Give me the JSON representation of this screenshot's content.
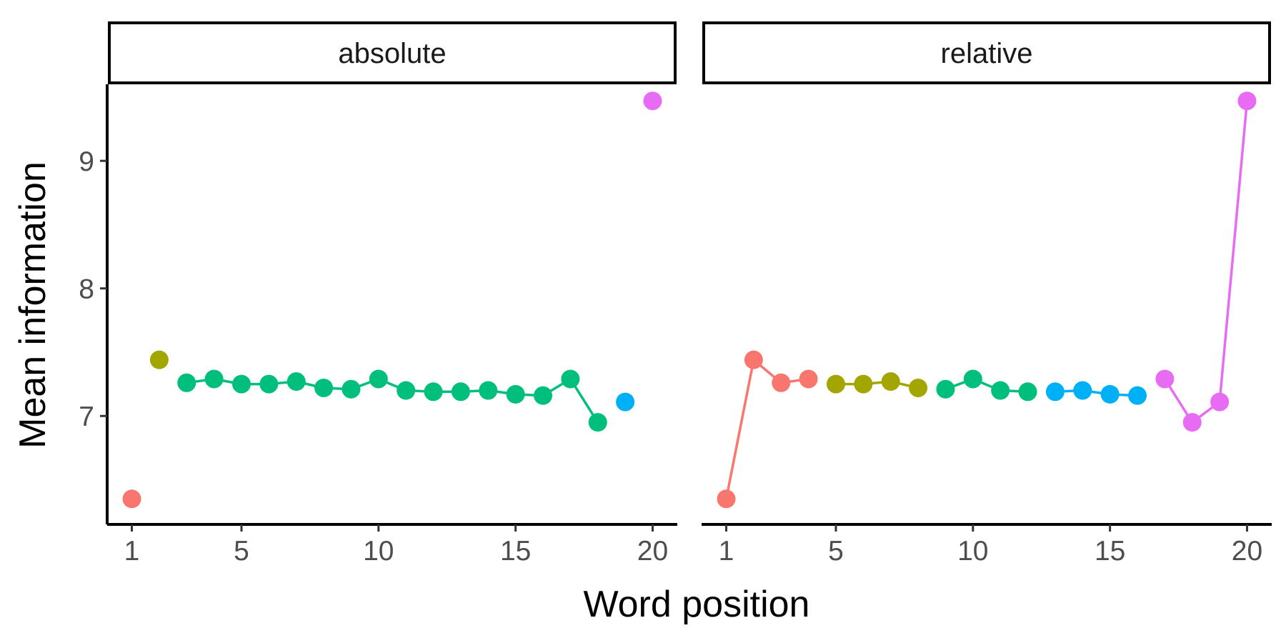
{
  "chart_data": {
    "type": "line",
    "xlabel": "Word position",
    "ylabel": "Mean information",
    "xlim": [
      0.1,
      20.9
    ],
    "ylim": [
      6.15,
      9.6
    ],
    "x_ticks": [
      1,
      5,
      10,
      15,
      20
    ],
    "y_ticks": [
      7,
      8,
      9
    ],
    "grid": false,
    "legend": "none",
    "panels": [
      {
        "name": "absolute",
        "series": [
          {
            "color": "#F8766D",
            "x": [
              1
            ],
            "y": [
              6.35
            ]
          },
          {
            "color": "#A3A500",
            "x": [
              2
            ],
            "y": [
              7.44
            ]
          },
          {
            "color": "#00BF7D",
            "x": [
              3,
              4,
              5,
              6,
              7,
              8,
              9,
              10,
              11,
              12,
              13,
              14,
              15,
              16,
              17,
              18
            ],
            "y": [
              7.26,
              7.29,
              7.25,
              7.25,
              7.27,
              7.22,
              7.21,
              7.29,
              7.2,
              7.19,
              7.19,
              7.2,
              7.17,
              7.16,
              7.29,
              6.95
            ]
          },
          {
            "color": "#00B0F6",
            "x": [
              19
            ],
            "y": [
              7.11
            ]
          },
          {
            "color": "#E76BF3",
            "x": [
              20
            ],
            "y": [
              9.47
            ]
          }
        ]
      },
      {
        "name": "relative",
        "series": [
          {
            "color": "#F8766D",
            "x": [
              1,
              2,
              3,
              4
            ],
            "y": [
              6.35,
              7.44,
              7.26,
              7.29
            ]
          },
          {
            "color": "#A3A500",
            "x": [
              5,
              6,
              7,
              8
            ],
            "y": [
              7.25,
              7.25,
              7.27,
              7.22
            ]
          },
          {
            "color": "#00BF7D",
            "x": [
              9,
              10,
              11,
              12
            ],
            "y": [
              7.21,
              7.29,
              7.2,
              7.19
            ]
          },
          {
            "color": "#00B0F6",
            "x": [
              13,
              14,
              15,
              16
            ],
            "y": [
              7.19,
              7.2,
              7.17,
              7.16
            ]
          },
          {
            "color": "#E76BF3",
            "x": [
              17,
              18,
              19,
              20
            ],
            "y": [
              7.29,
              6.95,
              7.11,
              9.47
            ]
          }
        ]
      }
    ]
  }
}
